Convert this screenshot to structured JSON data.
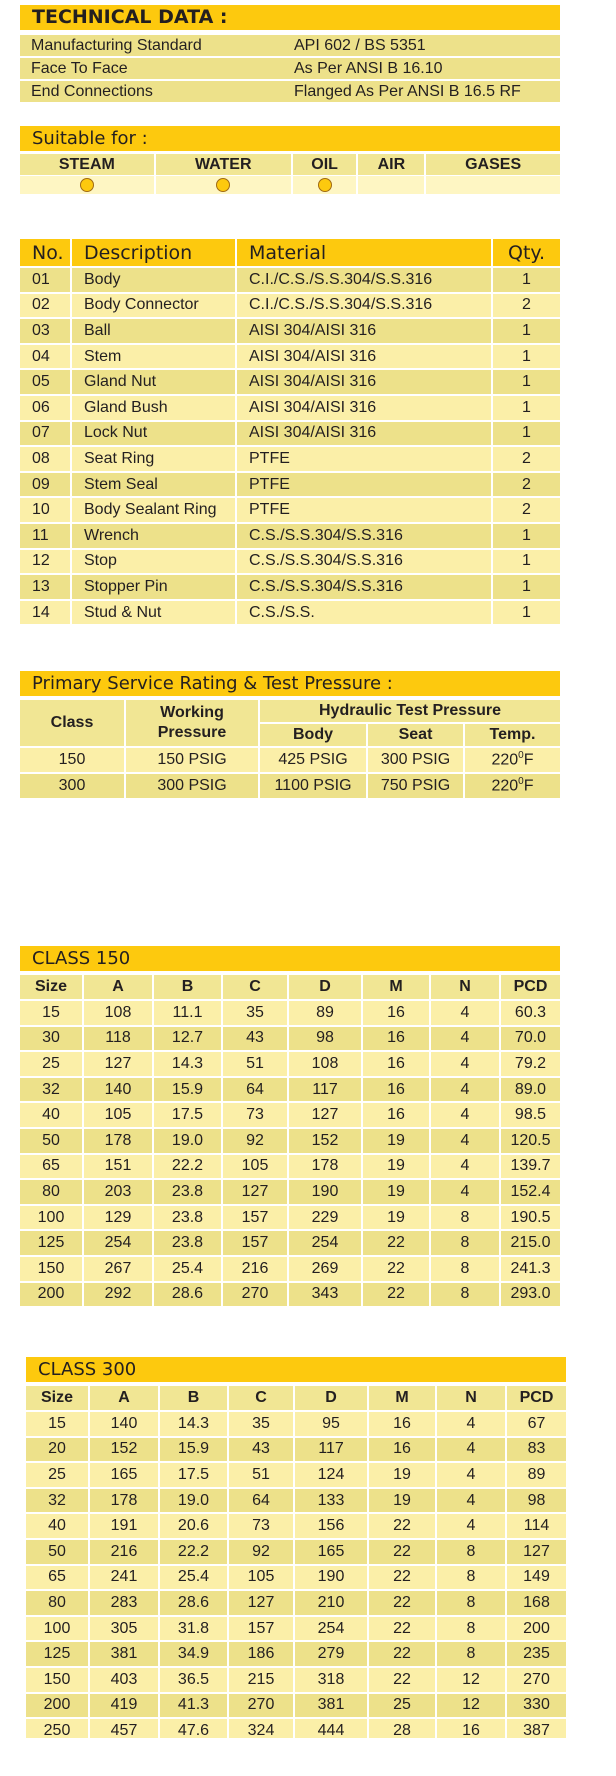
{
  "technical": {
    "title": "TECHNICAL DATA :",
    "rows": [
      [
        "Manufacturing Standard",
        "API 602 / BS 5351"
      ],
      [
        "Face To Face",
        "As Per ANSI B 16.10"
      ],
      [
        "End Connections",
        "Flanged As Per ANSI B 16.5 RF"
      ]
    ]
  },
  "suitable": {
    "title": "Suitable for :",
    "media": [
      "STEAM",
      "WATER",
      "OIL",
      "AIR",
      "GASES"
    ],
    "marked": [
      true,
      true,
      true,
      false,
      false
    ]
  },
  "parts": {
    "headers": [
      "No.",
      "Description",
      "Material",
      "Qty."
    ],
    "rows": [
      [
        "01",
        "Body",
        "C.I./C.S./S.S.304/S.S.316",
        "1"
      ],
      [
        "02",
        "Body Connector",
        "C.I./C.S./S.S.304/S.S.316",
        "2"
      ],
      [
        "03",
        "Ball",
        "AISI 304/AISI 316",
        "1"
      ],
      [
        "04",
        "Stem",
        "AISI 304/AISI 316",
        "1"
      ],
      [
        "05",
        "Gland Nut",
        "AISI 304/AISI 316",
        "1"
      ],
      [
        "06",
        "Gland Bush",
        "AISI 304/AISI 316",
        "1"
      ],
      [
        "07",
        "Lock Nut",
        "AISI 304/AISI 316",
        "1"
      ],
      [
        "08",
        "Seat Ring",
        "PTFE",
        "2"
      ],
      [
        "09",
        "Stem Seal",
        "PTFE",
        "2"
      ],
      [
        "10",
        "Body Sealant Ring",
        "PTFE",
        "2"
      ],
      [
        "11",
        "Wrench",
        "C.S./S.S.304/S.S.316",
        "1"
      ],
      [
        "12",
        "Stop",
        "C.S./S.S.304/S.S.316",
        "1"
      ],
      [
        "13",
        "Stopper Pin",
        "C.S./S.S.304/S.S.316",
        "1"
      ],
      [
        "14",
        "Stud & Nut",
        "C.S./S.S.",
        "1"
      ]
    ]
  },
  "service": {
    "title": "Primary Service Rating & Test Pressure :",
    "col_class": "Class",
    "col_working_1": "Working",
    "col_working_2": "Pressure",
    "col_hydraulic": "Hydraulic Test Pressure",
    "col_body": "Body",
    "col_seat": "Seat",
    "col_temp": "Temp.",
    "rows": [
      {
        "cls": "150",
        "working": "150 PSIG",
        "body": "425 PSIG",
        "seat": "300 PSIG",
        "temp": "220",
        "deg": "0",
        "unit": "F"
      },
      {
        "cls": "300",
        "working": "300 PSIG",
        "body": "1100 PSIG",
        "seat": "750 PSIG",
        "temp": "220",
        "deg": "0",
        "unit": "F"
      }
    ]
  },
  "class150": {
    "title": "CLASS 150",
    "headers": [
      "Size",
      "A",
      "B",
      "C",
      "D",
      "M",
      "N",
      "PCD"
    ],
    "rows": [
      [
        "15",
        "108",
        "11.1",
        "35",
        "89",
        "16",
        "4",
        "60.3"
      ],
      [
        "30",
        "118",
        "12.7",
        "43",
        "98",
        "16",
        "4",
        "70.0"
      ],
      [
        "25",
        "127",
        "14.3",
        "51",
        "108",
        "16",
        "4",
        "79.2"
      ],
      [
        "32",
        "140",
        "15.9",
        "64",
        "117",
        "16",
        "4",
        "89.0"
      ],
      [
        "40",
        "105",
        "17.5",
        "73",
        "127",
        "16",
        "4",
        "98.5"
      ],
      [
        "50",
        "178",
        "19.0",
        "92",
        "152",
        "19",
        "4",
        "120.5"
      ],
      [
        "65",
        "151",
        "22.2",
        "105",
        "178",
        "19",
        "4",
        "139.7"
      ],
      [
        "80",
        "203",
        "23.8",
        "127",
        "190",
        "19",
        "4",
        "152.4"
      ],
      [
        "100",
        "129",
        "23.8",
        "157",
        "229",
        "19",
        "8",
        "190.5"
      ],
      [
        "125",
        "254",
        "23.8",
        "157",
        "254",
        "22",
        "8",
        "215.0"
      ],
      [
        "150",
        "267",
        "25.4",
        "216",
        "269",
        "22",
        "8",
        "241.3"
      ],
      [
        "200",
        "292",
        "28.6",
        "270",
        "343",
        "22",
        "8",
        "293.0"
      ]
    ]
  },
  "class300": {
    "title": "CLASS 300",
    "headers": [
      "Size",
      "A",
      "B",
      "C",
      "D",
      "M",
      "N",
      "PCD"
    ],
    "rows": [
      [
        "15",
        "140",
        "14.3",
        "35",
        "95",
        "16",
        "4",
        "67"
      ],
      [
        "20",
        "152",
        "15.9",
        "43",
        "117",
        "16",
        "4",
        "83"
      ],
      [
        "25",
        "165",
        "17.5",
        "51",
        "124",
        "19",
        "4",
        "89"
      ],
      [
        "32",
        "178",
        "19.0",
        "64",
        "133",
        "19",
        "4",
        "98"
      ],
      [
        "40",
        "191",
        "20.6",
        "73",
        "156",
        "22",
        "4",
        "114"
      ],
      [
        "50",
        "216",
        "22.2",
        "92",
        "165",
        "22",
        "8",
        "127"
      ],
      [
        "65",
        "241",
        "25.4",
        "105",
        "190",
        "22",
        "8",
        "149"
      ],
      [
        "80",
        "283",
        "28.6",
        "127",
        "210",
        "22",
        "8",
        "168"
      ],
      [
        "100",
        "305",
        "31.8",
        "157",
        "254",
        "22",
        "8",
        "200"
      ],
      [
        "125",
        "381",
        "34.9",
        "186",
        "279",
        "22",
        "8",
        "235"
      ],
      [
        "150",
        "403",
        "36.5",
        "215",
        "318",
        "22",
        "12",
        "270"
      ],
      [
        "200",
        "419",
        "41.3",
        "270",
        "381",
        "25",
        "12",
        "330"
      ],
      [
        "250",
        "457",
        "47.6",
        "324",
        "444",
        "28",
        "16",
        "387"
      ]
    ]
  }
}
